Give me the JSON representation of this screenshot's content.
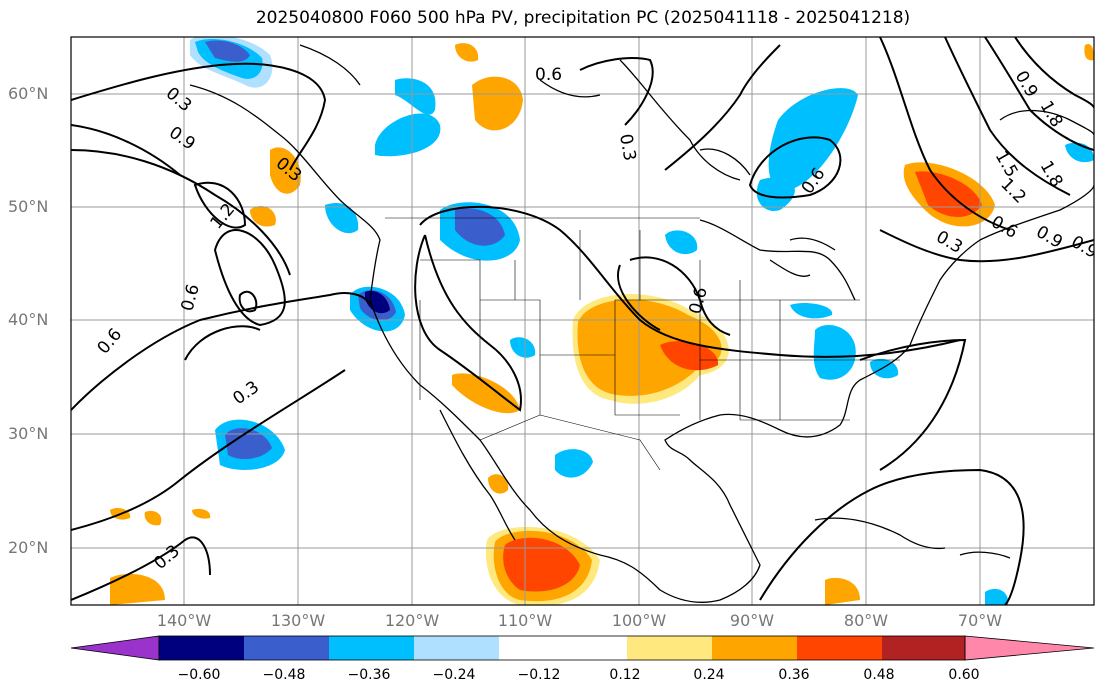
{
  "title": "2025040800 F060 500 hPa PV, precipitation PC (2025041118 - 2025041218)",
  "lat_labels": [
    "60°N",
    "50°N",
    "40°N",
    "30°N",
    "20°N"
  ],
  "lon_labels": [
    "140°W",
    "130°W",
    "120°W",
    "110°W",
    "100°W",
    "90°W",
    "80°W",
    "70°W"
  ],
  "contour_labels": [
    "0.6",
    "0.3",
    "0.9",
    "1.2",
    "0.6",
    "0.6",
    "0.3",
    "0.3",
    "0.6",
    "0.6",
    "0.3",
    "1.2",
    "0.9",
    "1.5",
    "1.8",
    "0.6",
    "0.9",
    "1.8",
    "0.3",
    "0.9",
    "0.3"
  ],
  "colorbar": {
    "colors": [
      "#9933cc",
      "#00007f",
      "#3a5fcd",
      "#00bfff",
      "#b0e0ff",
      "#ffffff",
      "#ffe97f",
      "#ffa500",
      "#ff4500",
      "#b22222",
      "#ff88aa"
    ],
    "tick_labels": [
      "−0.60",
      "−0.48",
      "−0.36",
      "−0.24",
      "−0.12",
      "0.12",
      "0.24",
      "0.36",
      "0.48",
      "0.60"
    ]
  },
  "palette": {
    "neg_light": "#b0e0ff",
    "neg_mid": "#00bfff",
    "neg_strong": "#3a5fcd",
    "neg_max": "#00007f",
    "pos_light": "#ffe97f",
    "pos_mid": "#ffa500",
    "pos_strong": "#ff4500"
  }
}
